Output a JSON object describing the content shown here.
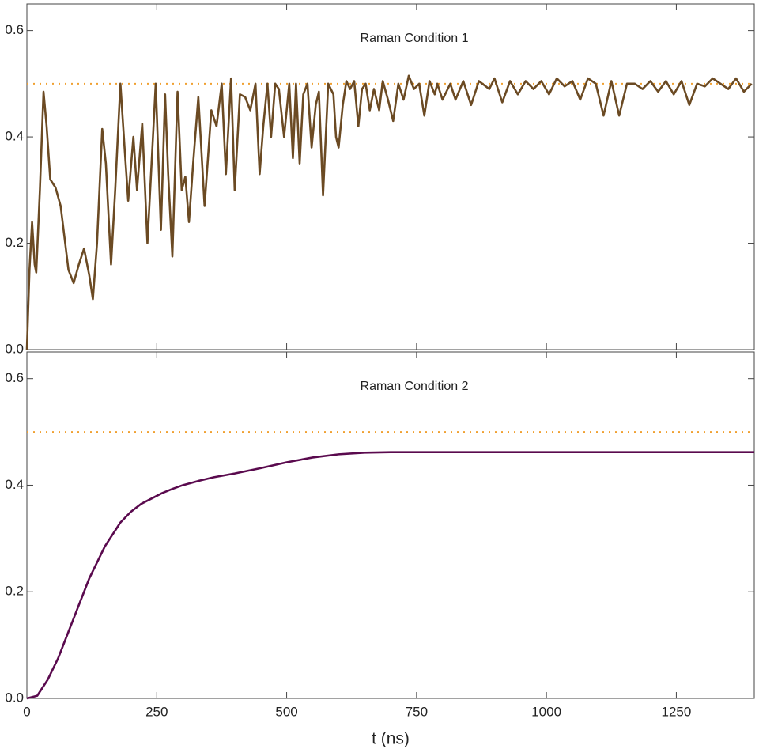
{
  "chart_data": [
    {
      "type": "line",
      "title": "Raman Condition 1",
      "x": [
        0,
        5,
        10,
        15,
        18,
        25,
        32,
        38,
        45,
        55,
        65,
        80,
        90,
        100,
        110,
        120,
        127,
        135,
        145,
        152,
        162,
        170,
        180,
        188,
        195,
        205,
        212,
        222,
        232,
        240,
        248,
        258,
        266,
        272,
        280,
        290,
        298,
        305,
        312,
        320,
        330,
        342,
        355,
        365,
        375,
        383,
        393,
        400,
        410,
        420,
        430,
        440,
        448,
        455,
        463,
        470,
        478,
        485,
        495,
        505,
        512,
        518,
        525,
        532,
        540,
        548,
        556,
        562,
        570,
        580,
        590,
        595,
        600,
        608,
        615,
        622,
        630,
        638,
        645,
        652,
        660,
        668,
        678,
        685,
        695,
        705,
        715,
        725,
        735,
        745,
        755,
        765,
        775,
        785,
        790,
        800,
        815,
        825,
        840,
        855,
        870,
        890,
        900,
        915,
        930,
        945,
        960,
        975,
        990,
        1005,
        1020,
        1035,
        1050,
        1065,
        1080,
        1095,
        1110,
        1125,
        1140,
        1155,
        1170,
        1185,
        1200,
        1215,
        1230,
        1245,
        1260,
        1275,
        1290,
        1305,
        1320,
        1335,
        1350,
        1365,
        1380,
        1395
      ],
      "series": [
        {
          "color": "#6b4a23",
          "values": [
            0,
            0.15,
            0.24,
            0.16,
            0.145,
            0.3,
            0.485,
            0.42,
            0.32,
            0.305,
            0.27,
            0.15,
            0.125,
            0.16,
            0.19,
            0.14,
            0.095,
            0.2,
            0.415,
            0.35,
            0.16,
            0.3,
            0.5,
            0.38,
            0.28,
            0.4,
            0.3,
            0.425,
            0.2,
            0.35,
            0.5,
            0.225,
            0.48,
            0.33,
            0.175,
            0.485,
            0.3,
            0.325,
            0.24,
            0.35,
            0.475,
            0.27,
            0.45,
            0.42,
            0.5,
            0.33,
            0.51,
            0.3,
            0.48,
            0.475,
            0.45,
            0.5,
            0.33,
            0.42,
            0.5,
            0.4,
            0.5,
            0.49,
            0.4,
            0.5,
            0.36,
            0.5,
            0.35,
            0.48,
            0.5,
            0.38,
            0.46,
            0.485,
            0.29,
            0.5,
            0.48,
            0.4,
            0.38,
            0.46,
            0.505,
            0.49,
            0.505,
            0.42,
            0.49,
            0.5,
            0.45,
            0.49,
            0.45,
            0.505,
            0.47,
            0.43,
            0.5,
            0.47,
            0.515,
            0.49,
            0.5,
            0.44,
            0.505,
            0.48,
            0.5,
            0.47,
            0.5,
            0.47,
            0.505,
            0.46,
            0.505,
            0.49,
            0.51,
            0.465,
            0.505,
            0.48,
            0.505,
            0.49,
            0.505,
            0.48,
            0.51,
            0.495,
            0.505,
            0.47,
            0.51,
            0.5,
            0.44,
            0.505,
            0.44,
            0.5,
            0.5,
            0.49,
            0.505,
            0.485,
            0.505,
            0.48,
            0.505,
            0.46,
            0.5,
            0.495,
            0.51,
            0.5,
            0.49,
            0.51,
            0.485,
            0.5
          ]
        }
      ],
      "hline": {
        "value": 0.5,
        "color": "#f0a030"
      },
      "xlim": [
        0,
        1400
      ],
      "xticks": [
        0,
        250,
        500,
        750,
        1000,
        1250
      ],
      "ylim": [
        0,
        0.65
      ],
      "yticks": [
        {
          "value": 0,
          "label": "0.0"
        },
        0.2,
        0.4,
        0.6
      ]
    },
    {
      "type": "line",
      "title": "Raman Condition 2",
      "xlabel": "t (ns)",
      "x": [
        0,
        20,
        30,
        40,
        50,
        60,
        70,
        80,
        90,
        100,
        110,
        120,
        130,
        140,
        150,
        160,
        170,
        180,
        190,
        200,
        220,
        240,
        260,
        280,
        300,
        330,
        360,
        400,
        450,
        500,
        550,
        600,
        650,
        700,
        800,
        1000,
        1200,
        1400
      ],
      "series": [
        {
          "color": "#5a0a4e",
          "values": [
            0,
            0.005,
            0.02,
            0.035,
            0.055,
            0.075,
            0.1,
            0.125,
            0.15,
            0.175,
            0.2,
            0.225,
            0.245,
            0.265,
            0.285,
            0.3,
            0.315,
            0.33,
            0.34,
            0.35,
            0.365,
            0.375,
            0.385,
            0.393,
            0.4,
            0.408,
            0.415,
            0.422,
            0.432,
            0.443,
            0.452,
            0.458,
            0.461,
            0.462,
            0.462,
            0.462,
            0.462,
            0.462
          ]
        }
      ],
      "hline": {
        "value": 0.5,
        "color": "#f0a030"
      },
      "xlim": [
        0,
        1400
      ],
      "xticks": [
        0,
        250,
        500,
        750,
        1000,
        1250
      ],
      "ylim": [
        0,
        0.65
      ],
      "yticks": [
        {
          "value": 0,
          "label": "0.0"
        },
        0.2,
        0.4,
        0.6
      ]
    }
  ]
}
